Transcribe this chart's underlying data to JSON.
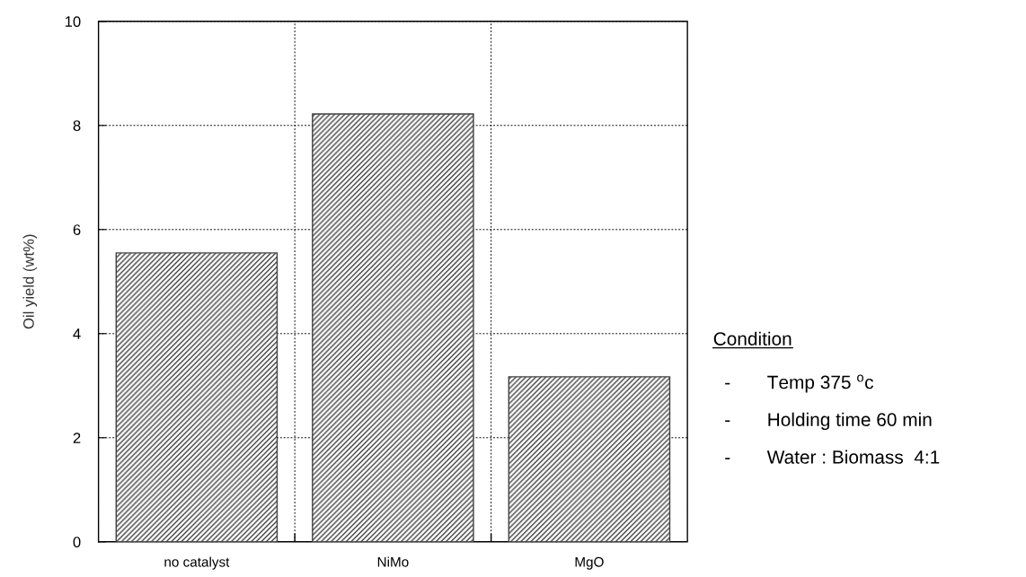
{
  "chart_data": {
    "type": "bar",
    "ylabel": "Oil yield (wt%)",
    "categories": [
      "no catalyst",
      "NiMo",
      "MgO"
    ],
    "values": [
      5.55,
      8.22,
      3.17
    ],
    "color": "#404040",
    "ylim": [
      0,
      10
    ],
    "yticks": [
      0,
      2,
      4,
      6,
      8,
      10
    ],
    "grid": true,
    "annotations": [
      "Condition",
      "-       Temp 375 $^{o}$c",
      "-       Holding time 60 min",
      "-       Water : Biomass  4:1"
    ]
  }
}
